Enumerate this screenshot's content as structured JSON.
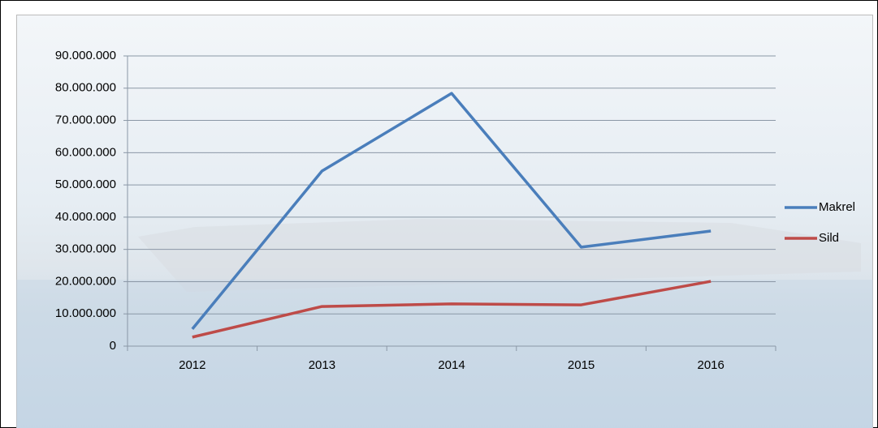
{
  "chart_data": {
    "type": "line",
    "categories": [
      "2012",
      "2013",
      "2014",
      "2015",
      "2016"
    ],
    "series": [
      {
        "name": "Makrel",
        "color": "#4a7ebb",
        "values": [
          5300000,
          54300000,
          78400000,
          30700000,
          35700000
        ]
      },
      {
        "name": "Sild",
        "color": "#be4b48",
        "values": [
          2800000,
          12300000,
          13100000,
          12800000,
          20100000
        ]
      }
    ],
    "ylim": [
      0,
      90000000
    ],
    "yticks": [
      0,
      {
        "value": 10000000,
        "label": "10.000.000"
      },
      {
        "value": 20000000,
        "label": "20.000.000"
      },
      {
        "value": 30000000,
        "label": "30.000.000"
      },
      {
        "value": 40000000,
        "label": "40.000.000"
      },
      {
        "value": 50000000,
        "label": "50.000.000"
      },
      {
        "value": 60000000,
        "label": "60.000.000"
      },
      {
        "value": 70000000,
        "label": "70.000.000"
      },
      {
        "value": 80000000,
        "label": "80.000.000"
      },
      {
        "value": 90000000,
        "label": "90.000.000"
      }
    ],
    "grid": true,
    "legend": "right"
  }
}
